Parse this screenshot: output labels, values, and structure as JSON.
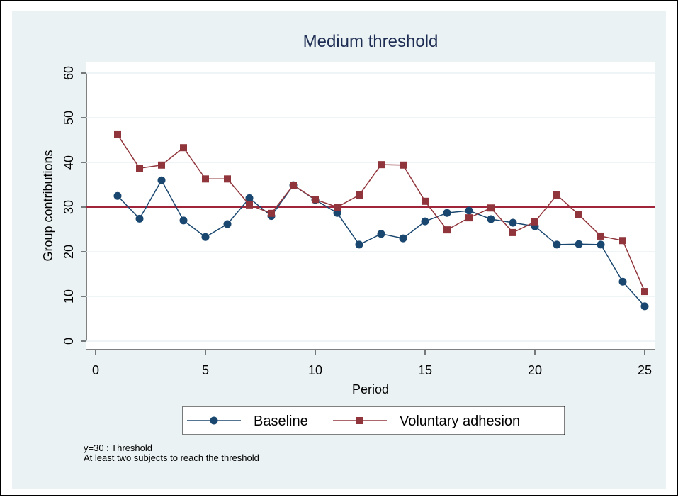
{
  "chart_data": {
    "type": "line",
    "title": "Medium threshold",
    "x_label": "Period",
    "y_label": "Group contributions",
    "x": [
      1,
      2,
      3,
      4,
      5,
      6,
      7,
      8,
      9,
      10,
      11,
      12,
      13,
      14,
      15,
      16,
      17,
      18,
      19,
      20,
      21,
      22,
      23,
      24,
      25
    ],
    "series": [
      {
        "name": "Baseline",
        "color": "#1a476f",
        "marker": "circle",
        "values": [
          32.5,
          27.4,
          36,
          27,
          23.3,
          26.2,
          32,
          28,
          34.9,
          31.6,
          28.7,
          21.6,
          24,
          23,
          26.8,
          28.7,
          29.2,
          27.3,
          26.5,
          25.7,
          21.6,
          21.7,
          21.6,
          13.3,
          7.8
        ]
      },
      {
        "name": "Voluntary adhesion",
        "color": "#90353b",
        "marker": "square",
        "values": [
          46.2,
          38.7,
          39.4,
          43.3,
          36.3,
          36.3,
          30.5,
          28.6,
          34.9,
          31.7,
          30,
          32.7,
          39.5,
          39.4,
          31.3,
          24.9,
          27.6,
          29.8,
          24.3,
          26.7,
          32.7,
          28.3,
          23.5,
          22.5,
          11.1
        ]
      }
    ],
    "hline": {
      "value": 30,
      "color": "#a0243a"
    },
    "xlim": [
      0,
      25
    ],
    "xticks": [
      0,
      5,
      10,
      15,
      20,
      25
    ],
    "ylim": [
      0,
      60
    ],
    "yticks": [
      0,
      10,
      20,
      30,
      40,
      50,
      60
    ],
    "grid": true,
    "notes": [
      "y=30 : Threshold",
      "At least two subjects to reach the threshold"
    ]
  }
}
